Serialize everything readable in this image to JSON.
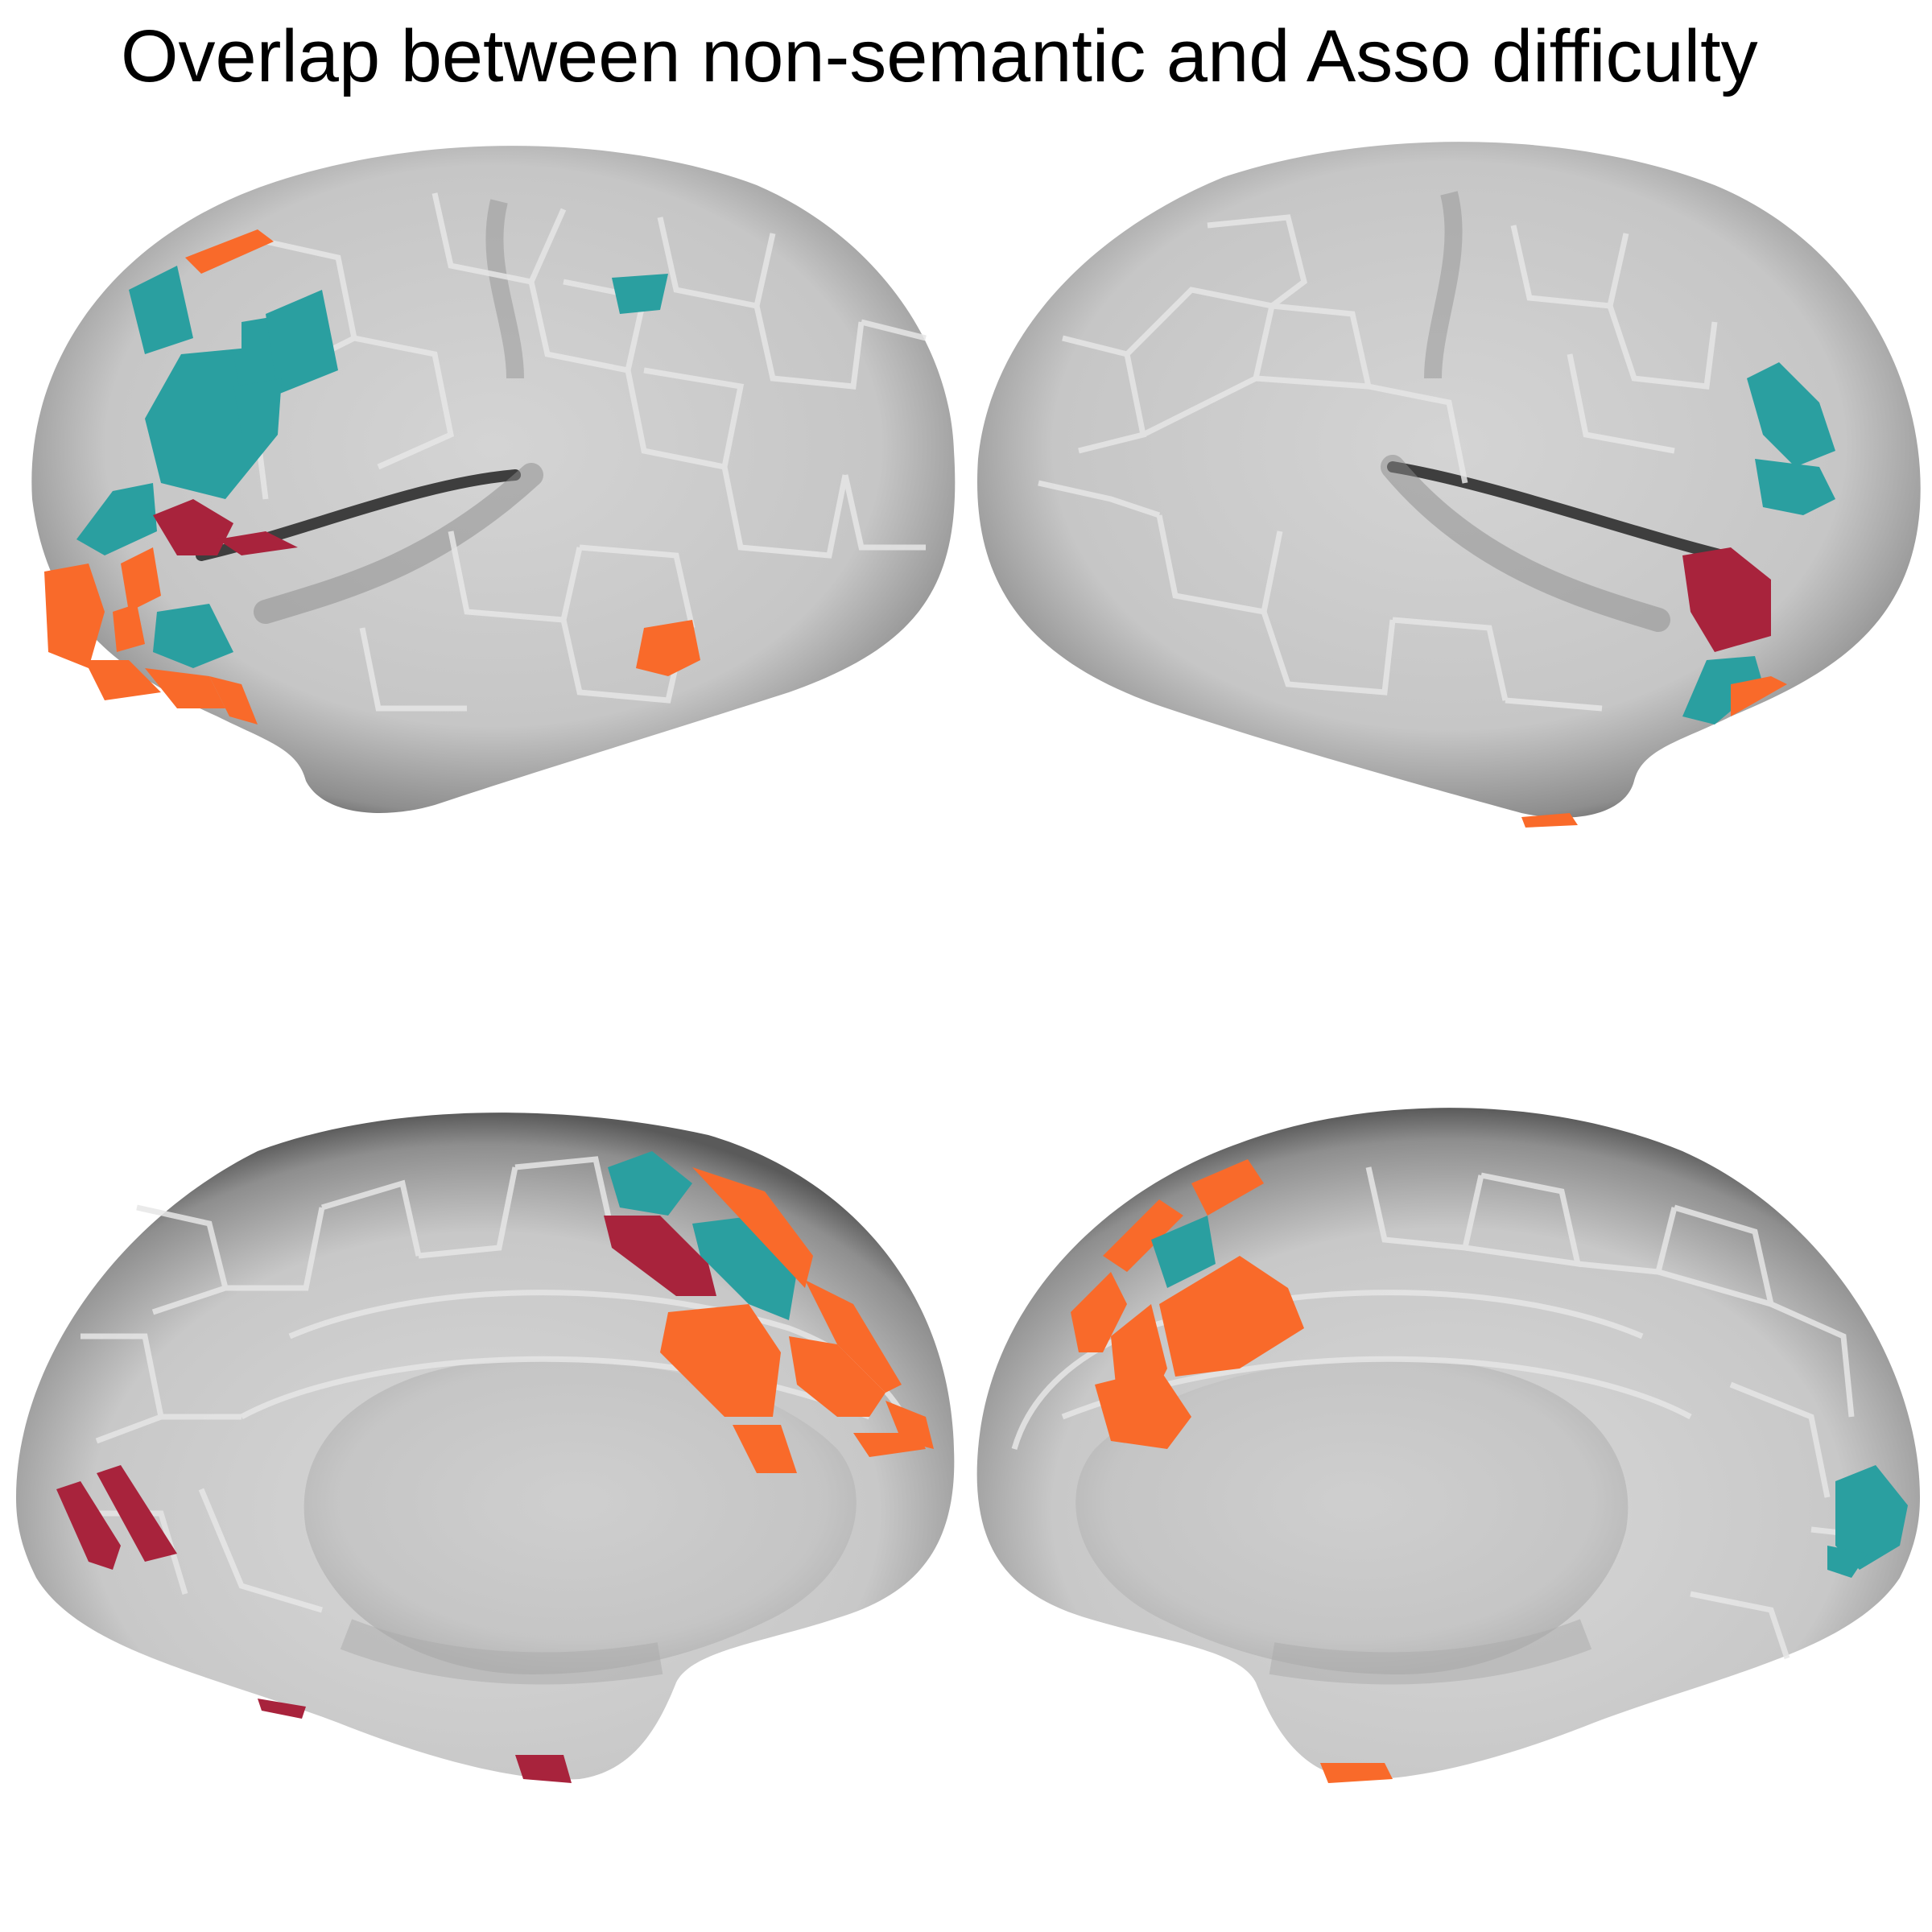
{
  "title": "Overlap between non-semantic and Asso difficulty",
  "colors": {
    "background": "#ffffff",
    "surface": "#cfcfcf",
    "surface_dark": "#5e5e5e",
    "parcel_border": "#e6e6e6",
    "teal": "#2a9fa0",
    "crimson": "#a8233c",
    "orange": "#f96a2a"
  },
  "panels": [
    {
      "id": "left-lateral",
      "hemisphere": "left",
      "view": "lateral"
    },
    {
      "id": "right-lateral",
      "hemisphere": "right",
      "view": "lateral"
    },
    {
      "id": "left-medial",
      "hemisphere": "left",
      "view": "medial"
    },
    {
      "id": "right-medial",
      "hemisphere": "right",
      "view": "medial"
    }
  ]
}
